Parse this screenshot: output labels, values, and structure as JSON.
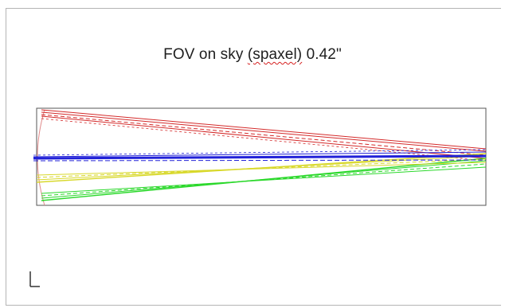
{
  "title": {
    "prefix": "FOV on sky ",
    "flagged_word": "(spaxel)",
    "suffix": " 0.42\""
  },
  "colors": {
    "red": "#d42a2a",
    "blue": "#2020d8",
    "yellow": "#d8d82a",
    "green": "#2ad82a",
    "frame": "#555555",
    "spellcheck": "#d62020"
  },
  "icons": {
    "axis": "axis-indicator-icon"
  }
}
